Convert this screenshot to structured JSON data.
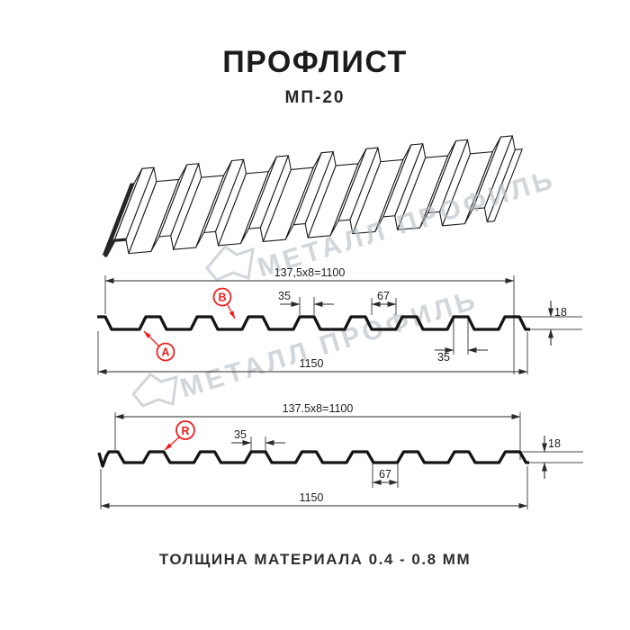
{
  "header": {
    "title": "ПРОФЛИСТ",
    "subtitle": "МП-20"
  },
  "watermark": {
    "text": "МЕТАЛЛ ПРОФИЛЬ"
  },
  "profile_top": {
    "dim_module": "137,5x8=1100",
    "dim_crest_top": "35",
    "dim_valley": "67",
    "dim_height": "18",
    "dim_crest_bottom": "35",
    "dim_overall": "1150",
    "label_a": "A",
    "label_b": "B"
  },
  "profile_bottom": {
    "dim_module": "137.5x8=1100",
    "dim_crest": "35",
    "dim_valley": "67",
    "dim_height": "18",
    "dim_overall": "1150",
    "label_r": "R"
  },
  "footer": {
    "note": "ТОЛЩИНА МАТЕРИАЛА 0.4 - 0.8 ММ"
  },
  "colors": {
    "line": "#141414",
    "dim_line": "#3a3a3a",
    "accent_red": "#ee1d1d",
    "watermark": "#c3cad1"
  }
}
